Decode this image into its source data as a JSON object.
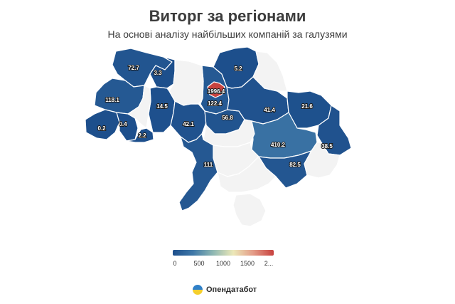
{
  "title": "Виторг за регіонами",
  "subtitle": "На основі аналізу найбільших компаній за галузями",
  "colors": {
    "low": "#1d4f8c",
    "mid": "#8fb8b3",
    "high": "#c8413e",
    "no_data": "#f3f3f3"
  },
  "legend": {
    "ticks": [
      "0",
      "500",
      "1000",
      "1500",
      "2..."
    ]
  },
  "brand": {
    "name": "Опендатабот"
  },
  "map_data": {
    "unit_scale_max": 2000,
    "regions": [
      {
        "id": "volyn",
        "value": 72.7,
        "label": "72.7"
      },
      {
        "id": "rivne",
        "value": 3.3,
        "label": "3.3"
      },
      {
        "id": "lviv",
        "value": 118.1,
        "label": "118.1"
      },
      {
        "id": "zakarpattia",
        "value": 0.2,
        "label": "0.2"
      },
      {
        "id": "ivano-frankivsk",
        "value": 0.4,
        "label": "0.4"
      },
      {
        "id": "chernivtsi",
        "value": 2.2,
        "label": "2.2"
      },
      {
        "id": "khmelnytskyi",
        "value": 14.5,
        "label": "14.5"
      },
      {
        "id": "vinnytsia",
        "value": 42.1,
        "label": "42.1"
      },
      {
        "id": "kyiv-oblast",
        "value": 122.4,
        "label": "122.4"
      },
      {
        "id": "kyiv-city",
        "value": 1996.4,
        "label": "1996.4"
      },
      {
        "id": "chernihiv",
        "value": 5.2,
        "label": "5.2"
      },
      {
        "id": "cherkasy",
        "value": 56.8,
        "label": "56.8"
      },
      {
        "id": "poltava",
        "value": 41.4,
        "label": "41.4"
      },
      {
        "id": "kharkiv",
        "value": 21.6,
        "label": "21.6"
      },
      {
        "id": "dnipropetrovsk",
        "value": 410.2,
        "label": "410.2"
      },
      {
        "id": "luhansk",
        "value": 38.5,
        "label": "38.5"
      },
      {
        "id": "zaporizhzhia",
        "value": 82.5,
        "label": "82.5"
      },
      {
        "id": "odesa",
        "value": 111,
        "label": "111"
      },
      {
        "id": "zhytomyr",
        "value": null
      },
      {
        "id": "ternopil",
        "value": null
      },
      {
        "id": "sumy",
        "value": null
      },
      {
        "id": "kirovohrad",
        "value": null
      },
      {
        "id": "mykolaiv",
        "value": null
      },
      {
        "id": "kherson",
        "value": null
      },
      {
        "id": "donetsk",
        "value": null
      },
      {
        "id": "crimea",
        "value": null
      }
    ]
  }
}
